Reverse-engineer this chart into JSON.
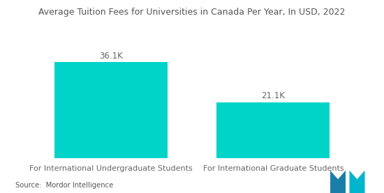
{
  "title": "Average Tuition Fees for Universities in Canada Per Year, In USD, 2022",
  "categories": [
    "For International Undergraduate Students",
    "For International Graduate Students"
  ],
  "values": [
    36100,
    21100
  ],
  "labels": [
    "36.1K",
    "21.1K"
  ],
  "bar_color": "#00D4C8",
  "background_color": "#ffffff",
  "title_fontsize": 9.0,
  "label_fontsize": 8.5,
  "xlabel_fontsize": 8.0,
  "source_text": "Source:  Mordor Intelligence",
  "ylim": [
    0,
    45000
  ],
  "bar_width": 0.32,
  "x_positions": [
    0.27,
    0.73
  ]
}
